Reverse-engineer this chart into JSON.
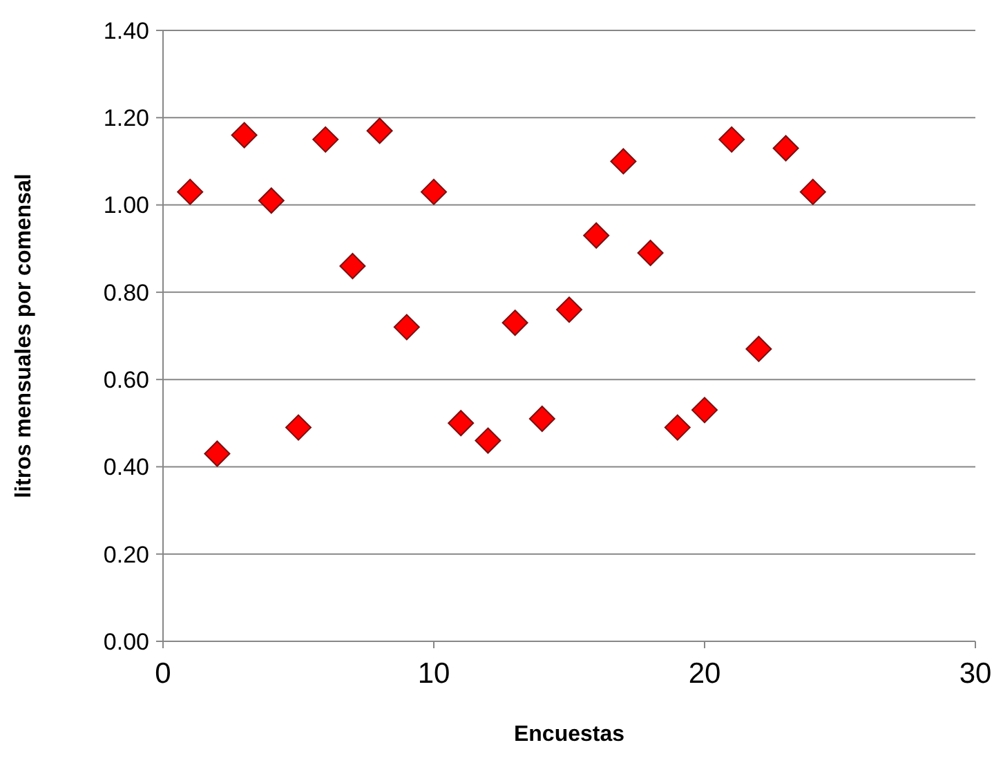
{
  "chart_data": {
    "type": "scatter",
    "xlabel": "Encuestas",
    "ylabel": "litros mensuales por comensal",
    "x": [
      1,
      2,
      3,
      4,
      5,
      6,
      7,
      8,
      9,
      10,
      11,
      12,
      13,
      14,
      15,
      16,
      17,
      18,
      19,
      20,
      21,
      22,
      23,
      24
    ],
    "values": [
      1.03,
      0.43,
      1.16,
      1.01,
      0.49,
      1.15,
      0.86,
      1.17,
      0.72,
      1.03,
      0.5,
      0.46,
      0.73,
      0.51,
      0.76,
      0.93,
      1.1,
      0.89,
      0.49,
      0.53,
      1.15,
      0.67,
      1.13,
      1.03
    ],
    "color": "#ff0000",
    "marker": "diamond",
    "grid": "y",
    "xlim": [
      0,
      30
    ],
    "xticks": [
      0,
      10,
      20,
      30
    ],
    "ylim": [
      0,
      1.4
    ],
    "yticks": [
      {
        "value": 0,
        "label": "0.00"
      },
      {
        "value": 0.2,
        "label": "0.20"
      },
      {
        "value": 0.4,
        "label": "0.40"
      },
      {
        "value": 0.6,
        "label": "0.60"
      },
      {
        "value": 0.8,
        "label": "0.80"
      },
      {
        "value": 1,
        "label": "1.00"
      },
      {
        "value": 1.2,
        "label": "1.20"
      },
      {
        "value": 1.4,
        "label": "1.40"
      }
    ]
  }
}
